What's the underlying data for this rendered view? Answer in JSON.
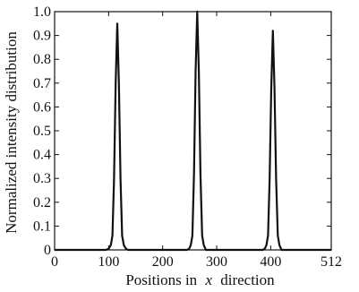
{
  "chart_data": {
    "type": "line",
    "title": "",
    "xlabel": "Positions in",
    "xlabel_var": "x",
    "xlabel_tail": "direction",
    "ylabel": "Normalized intensity distribution",
    "xlim": [
      0,
      512
    ],
    "ylim": [
      0,
      1.0
    ],
    "xticks": [
      0,
      100,
      200,
      300,
      400,
      512
    ],
    "yticks": [
      0,
      0.1,
      0.2,
      0.3,
      0.4,
      0.5,
      0.6,
      0.7,
      0.8,
      0.9,
      1.0
    ],
    "xtick_labels": [
      "0",
      "100",
      "200",
      "300",
      "400",
      "512"
    ],
    "ytick_labels": [
      "0",
      "0.1",
      "0.2",
      "0.3",
      "0.4",
      "0.5",
      "0.6",
      "0.7",
      "0.8",
      "0.9",
      "1.0"
    ],
    "grid": false,
    "series": [
      {
        "color": "#111111",
        "x": [
          0,
          95,
          100,
          104,
          107,
          110,
          113,
          116,
          119,
          122,
          125,
          128,
          132,
          136,
          245,
          249,
          252,
          255,
          258,
          261,
          264,
          267,
          270,
          273,
          276,
          280,
          385,
          389,
          392,
          395,
          398,
          401,
          404,
          407,
          410,
          413,
          416,
          420,
          512
        ],
        "y": [
          0,
          0,
          0.005,
          0.02,
          0.06,
          0.3,
          0.7,
          0.95,
          0.7,
          0.3,
          0.06,
          0.02,
          0.005,
          0,
          0,
          0.005,
          0.02,
          0.06,
          0.32,
          0.75,
          1.0,
          0.75,
          0.32,
          0.06,
          0.02,
          0,
          0,
          0.005,
          0.02,
          0.06,
          0.3,
          0.68,
          0.92,
          0.68,
          0.3,
          0.06,
          0.02,
          0,
          0
        ]
      }
    ]
  }
}
